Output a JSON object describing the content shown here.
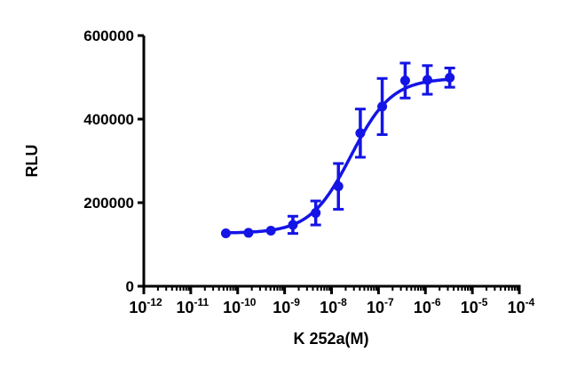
{
  "chart_data": {
    "type": "scatter",
    "title": "",
    "xlabel": "K 252a(M)",
    "ylabel": "RLU",
    "x_scale": "log",
    "xlim": [
      1e-12,
      0.0001
    ],
    "ylim": [
      0,
      600000
    ],
    "x_ticks": [
      {
        "base": "10",
        "exp": "-12"
      },
      {
        "base": "10",
        "exp": "-11"
      },
      {
        "base": "10",
        "exp": "-10"
      },
      {
        "base": "10",
        "exp": "-9"
      },
      {
        "base": "10",
        "exp": "-8"
      },
      {
        "base": "10",
        "exp": "-7"
      },
      {
        "base": "10",
        "exp": "-6"
      },
      {
        "base": "10",
        "exp": "-5"
      },
      {
        "base": "10",
        "exp": "-4"
      }
    ],
    "y_ticks": [
      "0",
      "200000",
      "400000",
      "600000"
    ],
    "grid": false,
    "legend": "none",
    "color": "#1414e6",
    "series": [
      {
        "x": [
          5.6e-11,
          1.7e-10,
          5.1e-10,
          1.5e-09,
          4.6e-09,
          1.4e-08,
          4.1e-08,
          1.2e-07,
          3.7e-07,
          1.1e-06,
          3.3e-06
        ],
        "y": [
          126500,
          127800,
          132900,
          146900,
          175400,
          239000,
          366400,
          430100,
          492300,
          493800,
          499300
        ],
        "error": [
          0,
          0,
          0,
          20600,
          28700,
          54800,
          57700,
          67200,
          41800,
          34300,
          23000
        ]
      }
    ],
    "fit": {
      "model": "4PL",
      "bottom": 127000,
      "top": 498000,
      "ec50": 2.6e-08,
      "hill": 1.0
    }
  }
}
